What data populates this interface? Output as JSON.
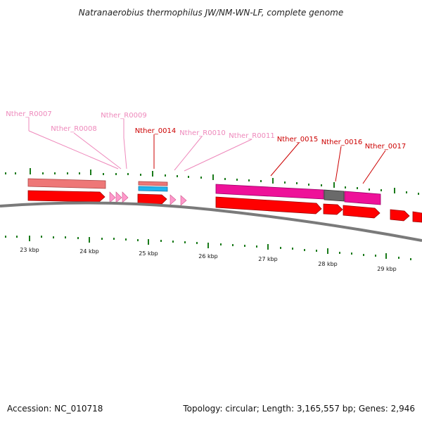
{
  "title": "Natranaerobius thermophilus JW/NM-WN-LF, complete genome",
  "footer": {
    "accession": "Accession: NC_010718",
    "topology": "Topology: circular; Length: 3,165,557 bp; Genes: 2,946"
  },
  "colors": {
    "backbone": "#7a7a7a",
    "tick": "#1a7a1a",
    "cds": "#ff0000",
    "rna": "#ff99cc",
    "rrna": "#ee7777",
    "trna_blue": "#22b5ee",
    "misc_pink": "#ee1199",
    "gap_gray": "#6a6a6a",
    "label_red": "#cc0000",
    "label_pink": "#ee88bb"
  },
  "scale_labels": [
    "23 kbp",
    "24 kbp",
    "25 kbp",
    "26 kbp",
    "27 kbp",
    "28 kbp",
    "29 kbp"
  ],
  "gene_labels": [
    {
      "text": "Nther_R0007",
      "kind": "rna"
    },
    {
      "text": "Nther_R0008",
      "kind": "rna"
    },
    {
      "text": "Nther_R0009",
      "kind": "rna"
    },
    {
      "text": "Nther_0014",
      "kind": "cds"
    },
    {
      "text": "Nther_R0010",
      "kind": "rna"
    },
    {
      "text": "Nther_R0011",
      "kind": "rna"
    },
    {
      "text": "Nther_0015",
      "kind": "cds"
    },
    {
      "text": "Nther_0016",
      "kind": "cds"
    },
    {
      "text": "Nther_0017",
      "kind": "cds"
    }
  ]
}
